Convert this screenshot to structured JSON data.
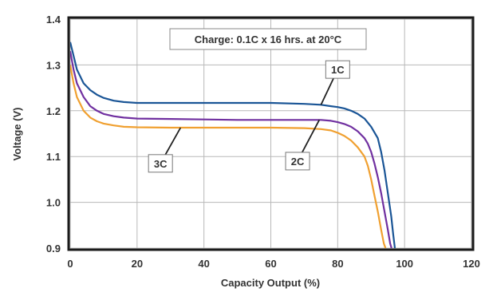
{
  "chart_data": {
    "type": "line",
    "title": "",
    "xlabel": "Capacity Output (%)",
    "ylabel": "Voltage (V)",
    "xlim": [
      0,
      120
    ],
    "ylim": [
      0.9,
      1.4
    ],
    "x_ticks": [
      "0",
      "20",
      "40",
      "60",
      "80",
      "100",
      "120"
    ],
    "y_ticks": [
      "1.4",
      "1.3",
      "1.2",
      "1.1",
      "1.0",
      "0.9"
    ],
    "grid": true,
    "annotation": "Charge: 0.1C x 16 hrs. at 20°C",
    "series": [
      {
        "name": "1C",
        "color": "#1a5596",
        "x": [
          0,
          1,
          2,
          4,
          6,
          8,
          10,
          13,
          16,
          20,
          30,
          40,
          50,
          60,
          70,
          75,
          78,
          80,
          82,
          84,
          86,
          88,
          90,
          92,
          93,
          94,
          95,
          96,
          96.6,
          97.1
        ],
        "y": [
          1.35,
          1.32,
          1.29,
          1.26,
          1.245,
          1.235,
          1.228,
          1.222,
          1.219,
          1.217,
          1.217,
          1.217,
          1.217,
          1.217,
          1.215,
          1.213,
          1.21,
          1.208,
          1.205,
          1.2,
          1.193,
          1.183,
          1.165,
          1.14,
          1.11,
          1.07,
          1.02,
          0.97,
          0.93,
          0.9
        ]
      },
      {
        "name": "2C",
        "color": "#7030a0",
        "x": [
          0,
          1,
          2,
          4,
          6,
          8,
          10,
          13,
          16,
          20,
          30,
          40,
          50,
          60,
          70,
          75,
          78,
          80,
          82,
          84,
          86,
          88,
          89,
          90,
          91,
          92,
          93,
          94,
          95,
          95.7,
          96.1
        ],
        "y": [
          1.33,
          1.29,
          1.26,
          1.23,
          1.21,
          1.2,
          1.193,
          1.188,
          1.185,
          1.183,
          1.182,
          1.181,
          1.18,
          1.18,
          1.18,
          1.18,
          1.178,
          1.175,
          1.171,
          1.165,
          1.155,
          1.14,
          1.128,
          1.11,
          1.085,
          1.055,
          1.02,
          0.98,
          0.94,
          0.91,
          0.9
        ]
      },
      {
        "name": "3C",
        "color": "#f0a030",
        "x": [
          0,
          1,
          2,
          4,
          6,
          8,
          10,
          13,
          16,
          20,
          30,
          40,
          50,
          60,
          70,
          75,
          78,
          80,
          82,
          84,
          86,
          88,
          89,
          90,
          91,
          92,
          93,
          93.8,
          94.3
        ],
        "y": [
          1.3,
          1.26,
          1.23,
          1.2,
          1.185,
          1.177,
          1.172,
          1.168,
          1.165,
          1.164,
          1.163,
          1.163,
          1.163,
          1.163,
          1.162,
          1.16,
          1.157,
          1.152,
          1.145,
          1.135,
          1.12,
          1.1,
          1.08,
          1.05,
          1.015,
          0.98,
          0.94,
          0.91,
          0.9
        ]
      }
    ],
    "callouts": [
      {
        "series": "1C",
        "label": "1C",
        "point": [
          75,
          1.213
        ],
        "box": [
          80,
          1.29
        ]
      },
      {
        "series": "2C",
        "label": "2C",
        "point": [
          74.5,
          1.18
        ],
        "box": [
          68,
          1.09
        ]
      },
      {
        "series": "3C",
        "label": "3C",
        "point": [
          33,
          1.163
        ],
        "box": [
          27,
          1.085
        ]
      }
    ]
  }
}
